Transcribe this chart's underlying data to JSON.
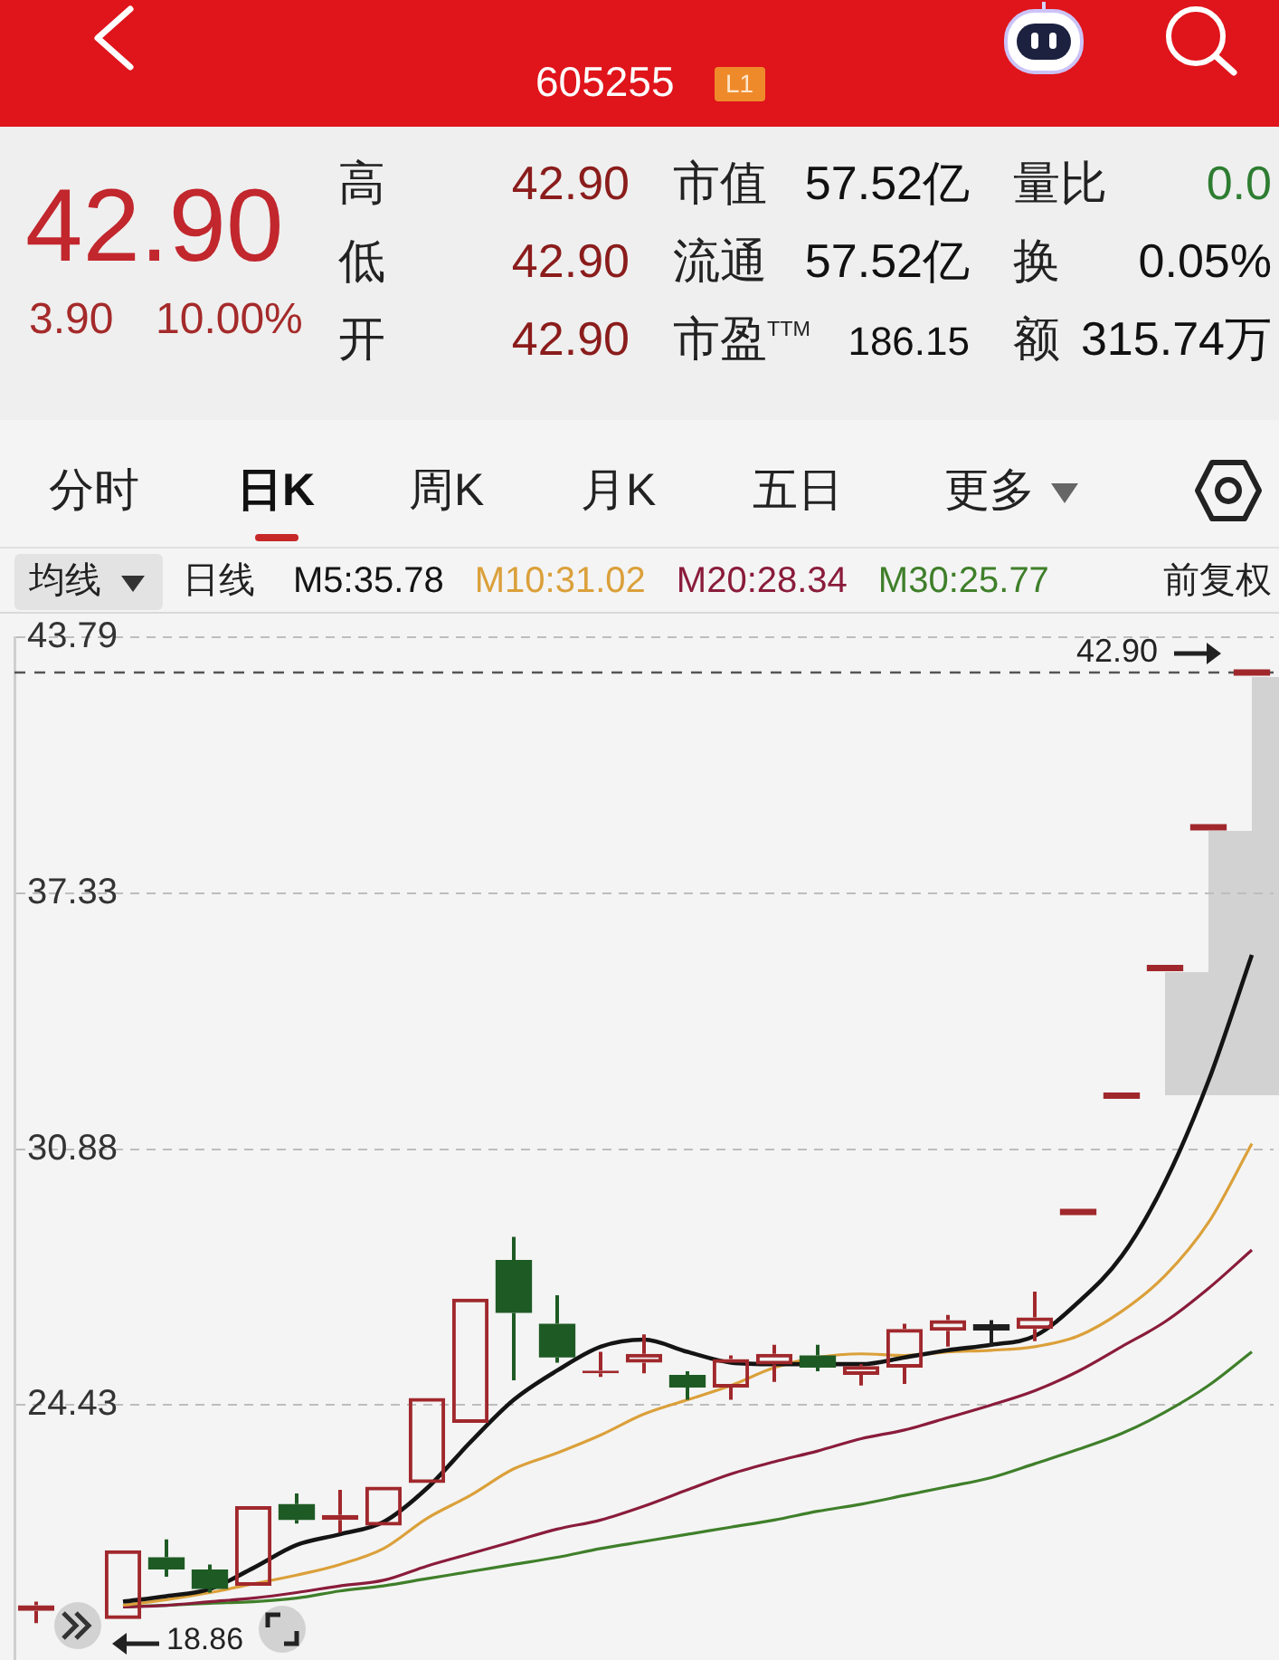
{
  "chart_data": [
    {
      "type": "other",
      "title": "605255",
      "annotations": [
        "L1",
        "42.90",
        "3.90",
        "10.00%",
        "高",
        "42.90",
        "低",
        "42.90",
        "开",
        "42.90",
        "市值",
        "57.52亿",
        "流通",
        "57.52亿",
        "市盈$^{TTM}$",
        "186.15",
        "量比",
        "0.0",
        "换",
        "0.05%",
        "额",
        "315.74万"
      ]
    },
    {
      "type": "candlestick",
      "categories": [
        null,
        null,
        null,
        null,
        null,
        null,
        null,
        null,
        null,
        null,
        null,
        null,
        null,
        null,
        null,
        null,
        null,
        null,
        null,
        null,
        null,
        null,
        null,
        null,
        null,
        null,
        null,
        null,
        null
      ],
      "ohlc": [
        [
          19.24,
          19.47,
          18.93,
          19.38
        ],
        null,
        [
          19.03,
          20.77,
          19.03,
          20.77
        ],
        [
          20.59,
          21.04,
          20.1,
          20.28
        ],
        [
          20.28,
          20.41,
          19.7,
          19.79
        ],
        [
          19.87,
          21.88,
          19.87,
          21.88
        ],
        [
          21.93,
          22.2,
          21.44,
          21.53
        ],
        [
          21.53,
          22.29,
          21.21,
          21.66
        ],
        [
          21.39,
          22.37,
          21.39,
          22.37
        ],
        [
          22.46,
          24.61,
          22.46,
          24.61
        ],
        [
          23.98,
          27.11,
          23.98,
          27.11
        ],
        [
          28.09,
          28.67,
          25.05,
          26.75
        ],
        [
          26.48,
          27.2,
          25.5,
          25.63
        ],
        [
          25.23,
          25.77,
          25.14,
          25.3
        ],
        [
          25.5,
          26.21,
          25.23,
          25.72
        ],
        [
          25.19,
          25.28,
          24.56,
          24.87
        ],
        [
          24.87,
          25.68,
          24.56,
          25.59
        ],
        [
          25.45,
          25.95,
          25.01,
          25.72
        ],
        [
          25.68,
          25.95,
          25.28,
          25.37
        ],
        [
          25.19,
          25.46,
          24.92,
          25.41
        ],
        [
          25.37,
          26.48,
          24.96,
          26.35
        ],
        [
          26.3,
          26.7,
          25.9,
          26.57
        ],
        [
          26.39,
          26.57,
          25.9,
          26.39
        ],
        [
          26.35,
          27.29,
          26.04,
          26.64
        ],
        [
          29.3,
          29.3,
          29.3,
          29.3
        ],
        [
          32.23,
          32.23,
          32.23,
          32.23
        ],
        [
          35.45,
          35.45,
          35.45,
          35.45
        ],
        [
          39.0,
          39.0,
          39.0,
          39.0
        ],
        [
          42.9,
          42.9,
          42.9,
          42.9
        ]
      ],
      "colors": [
        "#a0282c",
        null,
        "#a0282c",
        "#1e5b24",
        "#1e5b24",
        "#a0282c",
        "#1e5b24",
        "#a0282c",
        "#a0282c",
        "#a0282c",
        "#a0282c",
        "#1e5b24",
        "#1e5b24",
        "#a0282c",
        "#a0282c",
        "#1e5b24",
        "#a0282c",
        "#a0282c",
        "#1e5b24",
        "#a0282c",
        "#a0282c",
        "#a0282c",
        "#1f1f1f",
        "#a0282c",
        "#a0282c",
        "#a0282c",
        "#a0282c",
        "#a0282c",
        "#a0282c"
      ],
      "series": [
        {
          "name": "M5:35.78",
          "type": "line",
          "color": "#141414",
          "values": [
            null,
            null,
            19.47,
            19.61,
            19.79,
            20.32,
            20.9,
            21.17,
            21.48,
            22.33,
            23.49,
            24.56,
            25.3,
            25.9,
            26.08,
            25.77,
            25.5,
            25.46,
            25.46,
            25.46,
            25.63,
            25.81,
            25.95,
            26.17,
            27.02,
            28.18,
            30.05,
            32.6,
            35.78
          ]
        },
        {
          "name": "M10:31.02",
          "type": "line",
          "color": "#dba03a",
          "values": [
            null,
            null,
            19.38,
            19.52,
            19.7,
            19.92,
            20.14,
            20.41,
            20.81,
            21.57,
            22.15,
            22.82,
            23.22,
            23.67,
            24.2,
            24.56,
            24.92,
            25.37,
            25.63,
            25.72,
            25.68,
            25.77,
            25.81,
            25.9,
            26.17,
            26.79,
            27.69,
            29.03,
            31.02
          ]
        },
        {
          "name": "M20:28.34",
          "type": "line",
          "color": "#8a1c3b",
          "values": [
            null,
            null,
            19.34,
            19.38,
            19.47,
            19.56,
            19.7,
            19.87,
            20.01,
            20.37,
            20.68,
            20.99,
            21.3,
            21.53,
            21.88,
            22.29,
            22.69,
            23.0,
            23.27,
            23.58,
            23.8,
            24.11,
            24.43,
            24.79,
            25.28,
            25.9,
            26.53,
            27.37,
            28.34
          ]
        },
        {
          "name": "M30:25.77",
          "type": "line",
          "color": "#3f7f2a",
          "values": [
            null,
            null,
            19.34,
            19.38,
            19.43,
            19.47,
            19.56,
            19.74,
            19.87,
            20.05,
            20.23,
            20.41,
            20.59,
            20.81,
            20.99,
            21.17,
            21.35,
            21.53,
            21.75,
            21.93,
            22.15,
            22.37,
            22.6,
            22.95,
            23.31,
            23.71,
            24.25,
            24.92,
            25.77
          ]
        }
      ],
      "ylim": [
        18.0,
        43.79
      ],
      "yticks": [
        24.43,
        30.88,
        37.33,
        43.79
      ],
      "grid": "y",
      "tick_labels": "y",
      "legend": "top",
      "ref_lines": [
        {
          "axis": "y",
          "value": 42.9,
          "label": "42.90",
          "line_style": "dashed",
          "color": "#555555"
        }
      ],
      "annotations": [
        "分时",
        "日K",
        "周K",
        "月K",
        "五日",
        "更多",
        "均线",
        "日线",
        "前复权",
        "18.86"
      ]
    }
  ]
}
